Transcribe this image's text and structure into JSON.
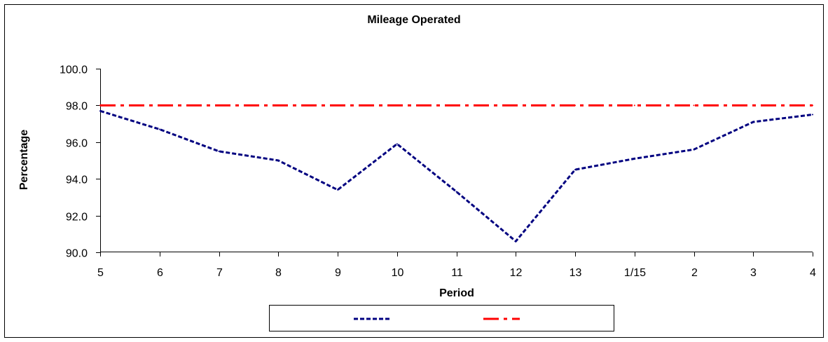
{
  "chart_data": {
    "type": "line",
    "title": "Mileage Operated",
    "xlabel": "Period",
    "ylabel": "Percentage",
    "categories": [
      "5",
      "6",
      "7",
      "8",
      "9",
      "10",
      "11",
      "12",
      "13",
      "1/15",
      "2",
      "3",
      "4"
    ],
    "ylim": [
      90,
      100
    ],
    "yticks": [
      "90.0",
      "92.0",
      "94.0",
      "96.0",
      "98.0",
      "100.0"
    ],
    "grid": false,
    "legend_position": "bottom",
    "series": [
      {
        "name": "",
        "values": [
          97.7,
          96.7,
          95.5,
          95.0,
          93.4,
          95.9,
          93.3,
          90.6,
          94.5,
          95.1,
          95.6,
          97.1,
          97.5
        ],
        "color": "#000080",
        "style": "dashed"
      },
      {
        "name": "",
        "values": [
          98.0,
          98.0,
          98.0,
          98.0,
          98.0,
          98.0,
          98.0,
          98.0,
          98.0,
          98.0,
          98.0,
          98.0,
          98.0
        ],
        "color": "#ff0000",
        "style": "dash-dot"
      }
    ]
  }
}
